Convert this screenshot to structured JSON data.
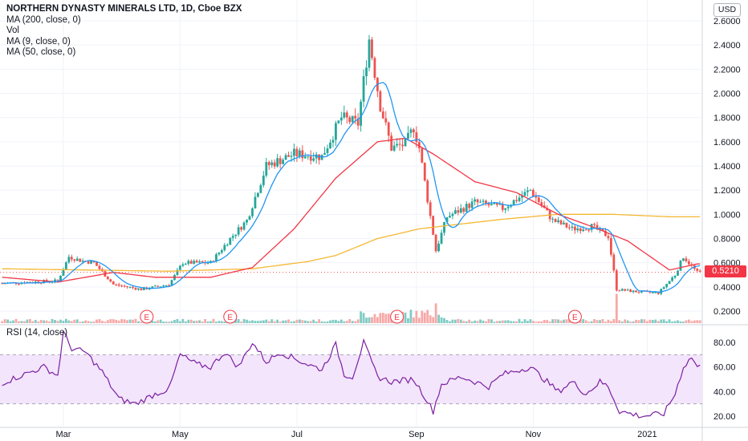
{
  "header": {
    "title": "NORTHERN DYNASTY MINERALS LTD, 1D, Cboe BZX",
    "indicators": [
      "MA (200, close, 0)",
      "Vol",
      "MA (9, close, 0)",
      "MA (50, close, 0)"
    ],
    "currency": "USD",
    "last_price": "0.5210"
  },
  "rsi_panel": {
    "label": "RSI (14, close)"
  },
  "colors": {
    "up": "#26a69a",
    "down": "#ef5350",
    "ma9": "#2196f3",
    "ma50": "#f23645",
    "ma200": "#f5b731",
    "rsi": "#7b1fa2",
    "rsi_band": "#f3e5fb",
    "earnings": "#f23645"
  },
  "earnings_markers": [
    "E",
    "E",
    "E",
    "E"
  ],
  "chart_data": [
    {
      "type": "candlestick",
      "title": "NORTHERN DYNASTY MINERALS LTD, 1D, Cboe BZX",
      "y_axis_ticks": [
        "0.2000",
        "0.4000",
        "0.6000",
        "0.8000",
        "1.0000",
        "1.2000",
        "1.4000",
        "1.6000",
        "1.8000",
        "2.0000",
        "2.2000",
        "2.4000",
        "2.6000"
      ],
      "ylim": [
        0.1,
        2.7
      ],
      "x_axis_ticks": [
        "Mar",
        "May",
        "Jul",
        "Sep",
        "Nov",
        "2021"
      ],
      "last_price": 0.521,
      "series": [
        {
          "name": "MA (200, close, 0)",
          "trend": [
            [
              0,
              0.55
            ],
            [
              30,
              0.54
            ],
            [
              60,
              0.53
            ],
            [
              90,
              0.55
            ],
            [
              110,
              0.61
            ],
            [
              120,
              0.66
            ],
            [
              135,
              0.8
            ],
            [
              150,
              0.88
            ],
            [
              165,
              0.92
            ],
            [
              180,
              0.96
            ],
            [
              200,
              1.0
            ],
            [
              220,
              1.0
            ],
            [
              240,
              0.98
            ],
            [
              250,
              0.98
            ]
          ]
        },
        {
          "name": "MA (50, close, 0)",
          "trend": [
            [
              0,
              0.48
            ],
            [
              20,
              0.44
            ],
            [
              40,
              0.52
            ],
            [
              55,
              0.48
            ],
            [
              75,
              0.48
            ],
            [
              90,
              0.56
            ],
            [
              105,
              0.88
            ],
            [
              120,
              1.3
            ],
            [
              135,
              1.6
            ],
            [
              145,
              1.63
            ],
            [
              155,
              1.5
            ],
            [
              170,
              1.27
            ],
            [
              185,
              1.18
            ],
            [
              200,
              1.0
            ],
            [
              212,
              0.9
            ],
            [
              225,
              0.78
            ],
            [
              240,
              0.54
            ],
            [
              250,
              0.59
            ]
          ]
        },
        {
          "name": "MA (9, close, 0)"
        }
      ],
      "close_path": [
        [
          0,
          0.43
        ],
        [
          10,
          0.44
        ],
        [
          20,
          0.45
        ],
        [
          24,
          0.65
        ],
        [
          28,
          0.62
        ],
        [
          33,
          0.6
        ],
        [
          40,
          0.42
        ],
        [
          50,
          0.38
        ],
        [
          60,
          0.42
        ],
        [
          65,
          0.6
        ],
        [
          75,
          0.6
        ],
        [
          82,
          0.8
        ],
        [
          88,
          0.95
        ],
        [
          95,
          1.4
        ],
        [
          105,
          1.5
        ],
        [
          115,
          1.48
        ],
        [
          122,
          1.8
        ],
        [
          128,
          1.75
        ],
        [
          132,
          2.45
        ],
        [
          136,
          1.9
        ],
        [
          140,
          1.55
        ],
        [
          145,
          1.58
        ],
        [
          148,
          1.72
        ],
        [
          150,
          1.55
        ],
        [
          156,
          0.7
        ],
        [
          160,
          0.98
        ],
        [
          170,
          1.1
        ],
        [
          180,
          1.05
        ],
        [
          190,
          1.2
        ],
        [
          198,
          0.95
        ],
        [
          205,
          0.88
        ],
        [
          212,
          0.9
        ],
        [
          218,
          0.82
        ],
        [
          221,
          0.38
        ],
        [
          228,
          0.36
        ],
        [
          236,
          0.35
        ],
        [
          242,
          0.5
        ],
        [
          245,
          0.65
        ],
        [
          250,
          0.52
        ]
      ]
    },
    {
      "type": "line",
      "name": "RSI (14, close)",
      "y_axis_ticks": [
        "20.00",
        "40.00",
        "60.00",
        "80.00"
      ],
      "ylim": [
        12,
        92
      ],
      "band": [
        30,
        70
      ],
      "trend": [
        [
          0,
          47
        ],
        [
          8,
          54
        ],
        [
          15,
          60
        ],
        [
          20,
          53
        ],
        [
          22,
          88
        ],
        [
          25,
          75
        ],
        [
          30,
          72
        ],
        [
          36,
          56
        ],
        [
          42,
          34
        ],
        [
          48,
          30
        ],
        [
          55,
          38
        ],
        [
          60,
          42
        ],
        [
          64,
          70
        ],
        [
          70,
          62
        ],
        [
          75,
          60
        ],
        [
          80,
          72
        ],
        [
          85,
          60
        ],
        [
          90,
          80
        ],
        [
          95,
          64
        ],
        [
          100,
          72
        ],
        [
          110,
          62
        ],
        [
          115,
          58
        ],
        [
          120,
          78
        ],
        [
          123,
          54
        ],
        [
          126,
          52
        ],
        [
          130,
          80
        ],
        [
          135,
          52
        ],
        [
          140,
          48
        ],
        [
          148,
          50
        ],
        [
          152,
          36
        ],
        [
          155,
          24
        ],
        [
          158,
          46
        ],
        [
          165,
          52
        ],
        [
          175,
          44
        ],
        [
          180,
          54
        ],
        [
          190,
          60
        ],
        [
          195,
          50
        ],
        [
          200,
          40
        ],
        [
          205,
          48
        ],
        [
          210,
          38
        ],
        [
          215,
          48
        ],
        [
          218,
          44
        ],
        [
          222,
          24
        ],
        [
          230,
          20
        ],
        [
          238,
          22
        ],
        [
          242,
          38
        ],
        [
          245,
          60
        ],
        [
          248,
          68
        ],
        [
          250,
          60
        ]
      ]
    }
  ]
}
